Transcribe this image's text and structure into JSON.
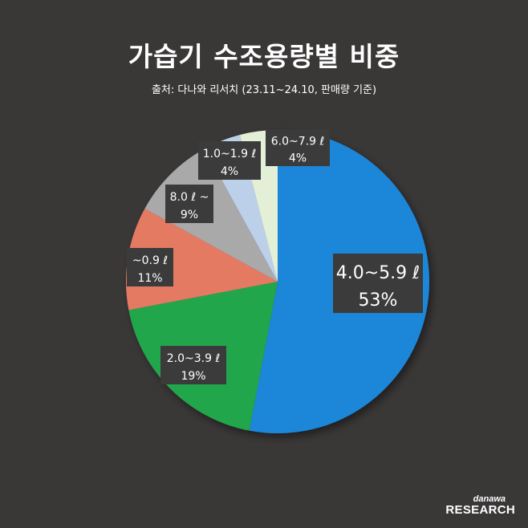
{
  "chart_data": {
    "type": "pie",
    "title": "가습기 수조용량별 비중",
    "subtitle": "출처: 다나와 리서치 (23.11~24.10, 판매량 기준)",
    "slices": [
      {
        "label": "4.0~5.9 ℓ",
        "value": 53,
        "value_label": "53%",
        "color": "#1f86d8"
      },
      {
        "label": "2.0~3.9 ℓ",
        "value": 19,
        "value_label": "19%",
        "color": "#22a64b"
      },
      {
        "label": "~0.9 ℓ",
        "value": 11,
        "value_label": "11%",
        "color": "#e57a63"
      },
      {
        "label": "8.0 ℓ ~",
        "value": 9,
        "value_label": "9%",
        "color": "#a9a9a9"
      },
      {
        "label": "1.0~1.9 ℓ",
        "value": 4,
        "value_label": "4%",
        "color": "#bcd0ea"
      },
      {
        "label": "6.0~7.9 ℓ",
        "value": 4,
        "value_label": "4%",
        "color": "#e4efd8"
      }
    ],
    "start": "12 o'clock",
    "direction": "clockwise"
  },
  "logo": {
    "top": "danawa",
    "bottom": "RESEARCH"
  }
}
